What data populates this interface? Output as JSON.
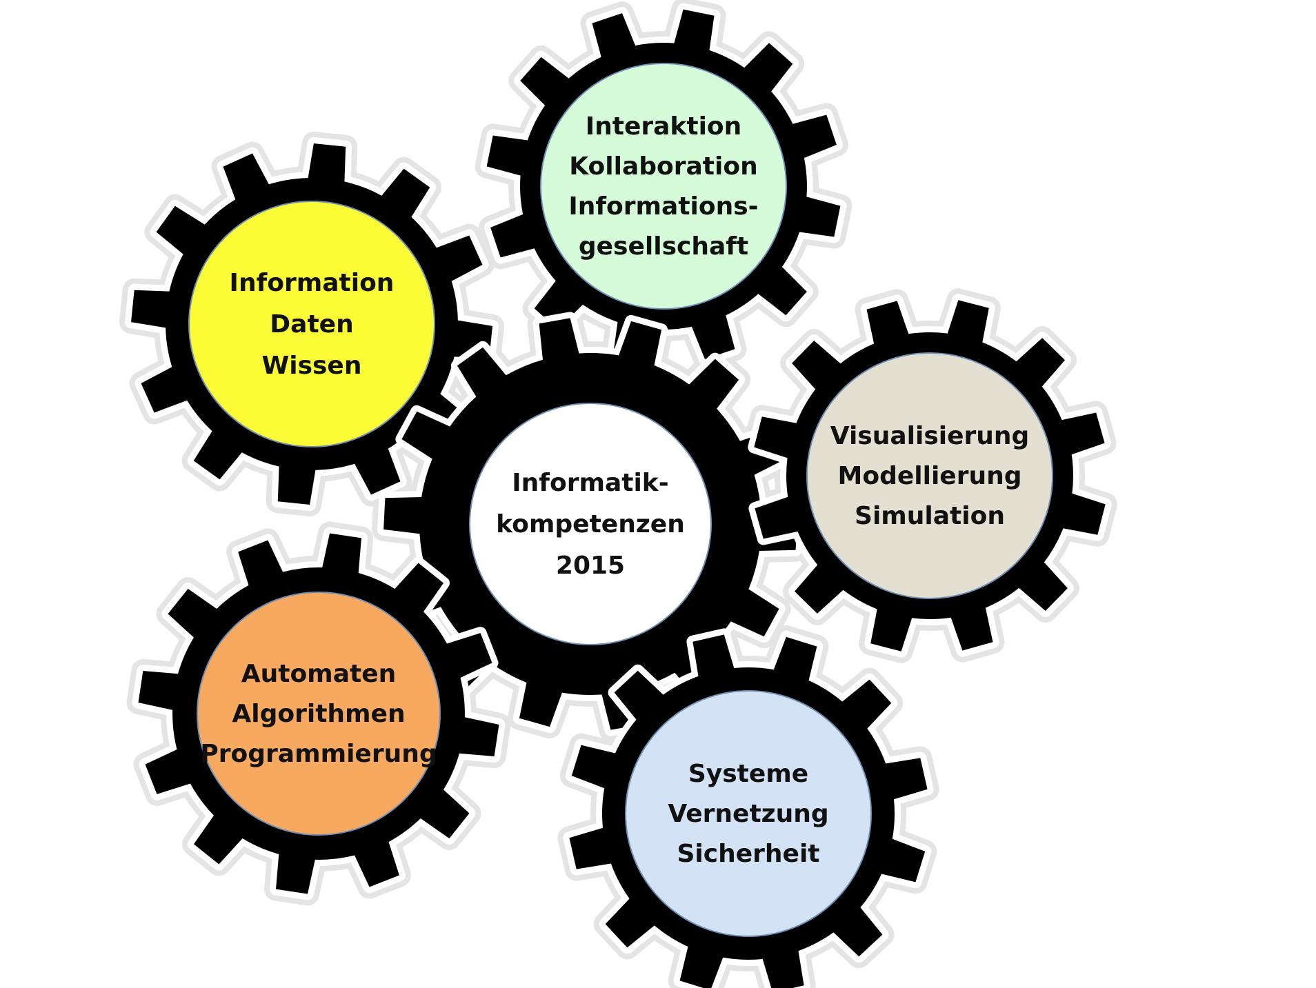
{
  "diagram": {
    "gear_color": "#000000",
    "halo_color": "#e4e4e4",
    "gears": [
      {
        "id": "information",
        "lines": [
          "Information",
          "Daten",
          "Wissen"
        ],
        "fill": "#fbfb36"
      },
      {
        "id": "interaktion",
        "lines": [
          "Interaktion",
          "Kollaboration",
          "Informations-",
          "gesellschaft"
        ],
        "fill": "#d5fbd9"
      },
      {
        "id": "center",
        "lines": [
          "Informatik-",
          "kompetenzen",
          "2015"
        ],
        "fill": "#ffffff"
      },
      {
        "id": "visualisierung",
        "lines": [
          "Visualisierung",
          "Modellierung",
          "Simulation"
        ],
        "fill": "#e3e0d1"
      },
      {
        "id": "automaten",
        "lines": [
          "Automaten",
          "Algorithmen",
          "Programmierung"
        ],
        "fill": "#f7a95f"
      },
      {
        "id": "systeme",
        "lines": [
          "Systeme",
          "Vernetzung",
          "Sicherheit"
        ],
        "fill": "#d3e3f5"
      }
    ]
  }
}
